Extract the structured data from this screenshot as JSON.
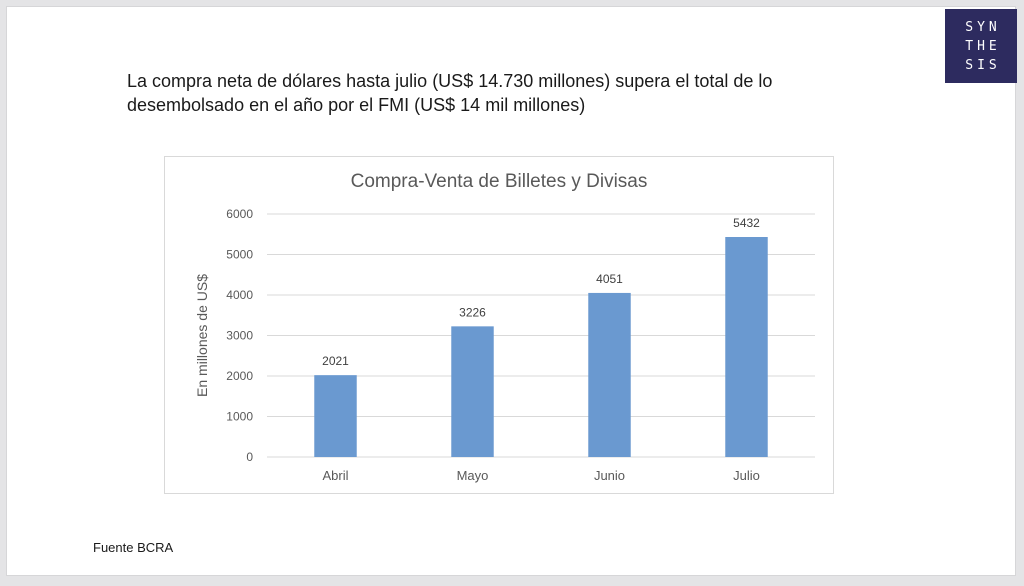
{
  "logo": {
    "lines": [
      "SYN",
      "THE",
      "SIS"
    ]
  },
  "headline": "La compra neta de dólares hasta julio (US$  14.730 millones) supera el total de lo desembolsado en el año por el FMI (US$ 14 mil millones)",
  "source": "Fuente BCRA",
  "colors": {
    "bar": "#6a99d0",
    "grid": "#d9d9d9",
    "axis_text": "#595959",
    "logo_bg": "#2d2b5f"
  },
  "chart_data": {
    "type": "bar",
    "title": "Compra-Venta de Billetes y Divisas",
    "xlabel": "",
    "ylabel": "En millones de US$",
    "categories": [
      "Abril",
      "Mayo",
      "Junio",
      "Julio"
    ],
    "values": [
      2021,
      3226,
      4051,
      5432
    ],
    "ylim": [
      0,
      6000
    ],
    "yticks": [
      0,
      1000,
      2000,
      3000,
      4000,
      5000,
      6000
    ],
    "grid": true,
    "data_labels": true
  }
}
